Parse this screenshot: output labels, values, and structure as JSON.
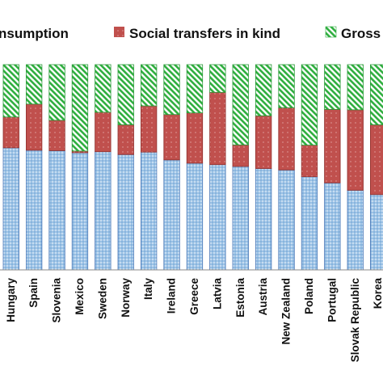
{
  "chart_data": {
    "type": "bar",
    "stacked": true,
    "orientation": "vertical",
    "percent_stacked": true,
    "grid": false,
    "legend_position": "top",
    "ylim": [
      0,
      100
    ],
    "categories": [
      "Hungary",
      "Spain",
      "Slovenia",
      "Mexico",
      "Sweden",
      "Norway",
      "Italy",
      "Ireland",
      "Greece",
      "Latvia",
      "Estonia",
      "Austria",
      "New Zealand",
      "Poland",
      "Portugal",
      "Slovak Republic",
      "Korea"
    ],
    "series": [
      {
        "name": "nsumption",
        "color": "#9dc3e6",
        "pattern": "dots-blue",
        "values": [
          59.5,
          58.3,
          58.1,
          57.1,
          57.6,
          56.2,
          57.4,
          53.6,
          52.0,
          51.3,
          50.4,
          49.4,
          48.7,
          45.4,
          42.4,
          38.8,
          36.7
        ]
      },
      {
        "name": "Social transfers in kind",
        "color": "#c0504d",
        "pattern": "dots-red",
        "values": [
          15.0,
          22.5,
          14.8,
          0.8,
          19.2,
          14.5,
          22.5,
          22.1,
          24.5,
          35.2,
          10.5,
          25.7,
          30.3,
          15.4,
          35.8,
          39.2,
          34.0
        ]
      },
      {
        "name": "Gross",
        "color": "#3fb54a",
        "pattern": "diagonal-green",
        "values": [
          25.5,
          19.2,
          27.1,
          42.1,
          23.2,
          29.3,
          20.1,
          24.3,
          23.5,
          13.5,
          39.1,
          24.9,
          21.0,
          39.2,
          21.8,
          22.0,
          29.3
        ]
      }
    ]
  }
}
